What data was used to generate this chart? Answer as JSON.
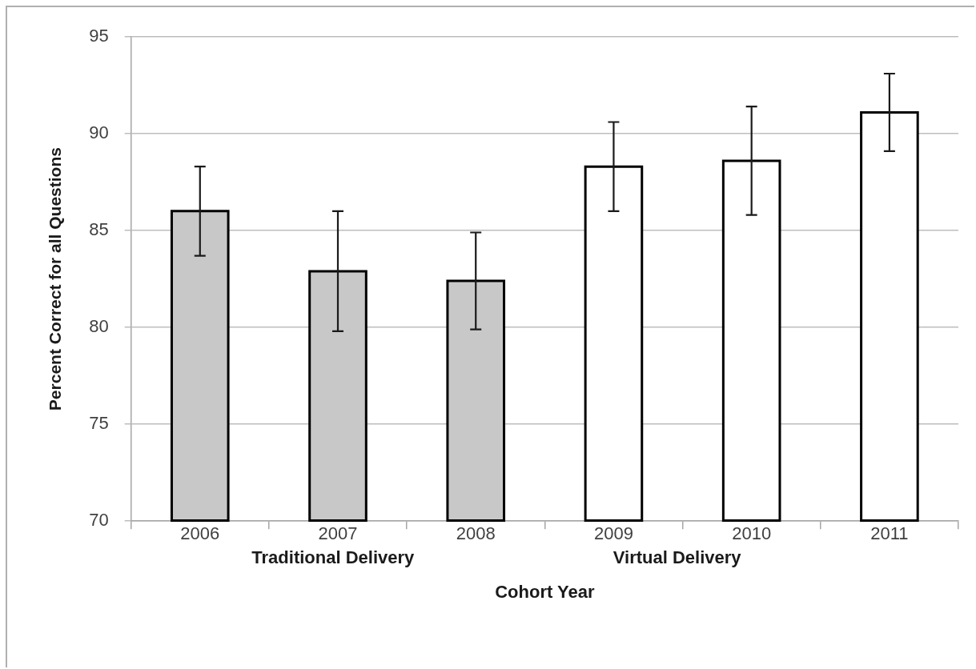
{
  "chart_data": {
    "type": "bar",
    "xlabel": "Cohort Year",
    "ylabel": "Percent Correct for all Questions",
    "categories": [
      "2006",
      "2007",
      "2008",
      "2009",
      "2010",
      "2011"
    ],
    "values": [
      86.0,
      82.9,
      82.4,
      88.3,
      88.6,
      91.1
    ],
    "errors": [
      2.3,
      3.1,
      2.5,
      2.3,
      2.8,
      2.0
    ],
    "colors": [
      "#c8c8c8",
      "#c8c8c8",
      "#c8c8c8",
      "#ffffff",
      "#ffffff",
      "#ffffff"
    ],
    "ylim": [
      70,
      95
    ],
    "yticks": [
      70,
      75,
      80,
      85,
      90,
      95
    ],
    "grid": "y",
    "annotations": [
      "Traditional Delivery",
      "Virtual Delivery"
    ]
  }
}
